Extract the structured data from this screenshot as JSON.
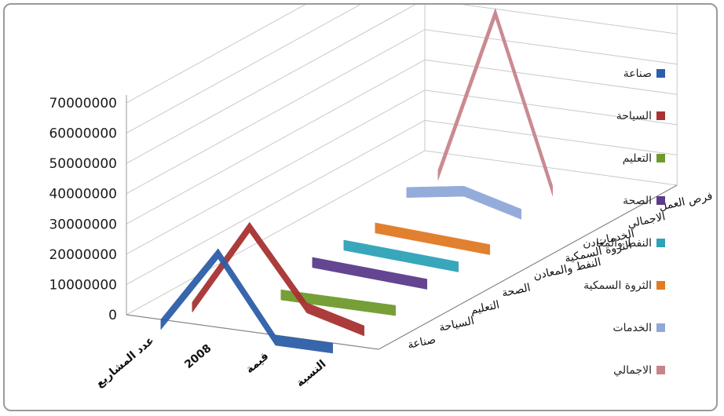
{
  "chart_data": {
    "type": "line",
    "style": "3d",
    "categories": [
      "عدد المشاريع",
      "2008",
      "قيمة",
      "النسبة"
    ],
    "y_ticks": [
      "0",
      "10000000",
      "20000000",
      "30000000",
      "40000000",
      "50000000",
      "60000000",
      "70000000"
    ],
    "ylim": [
      0,
      70000000
    ],
    "legend_position": "right",
    "series": [
      {
        "name": "صناعة",
        "depth_label": "صناعة",
        "color": "#2e5ea8",
        "values": [
          0,
          26000000,
          0,
          0
        ]
      },
      {
        "name": "السياحة",
        "depth_label": "السياحة",
        "color": "#a83232",
        "values": [
          0,
          29000000,
          5000000,
          0
        ]
      },
      {
        "name": "التعليم",
        "depth_label": "التعليم",
        "color": "#6f9a2e",
        "values": [
          null,
          1000000,
          1000000,
          1000000
        ]
      },
      {
        "name": "الصحة",
        "depth_label": "الصحة",
        "color": "#5b3c8c",
        "values": [
          null,
          6000000,
          5000000,
          4000000
        ]
      },
      {
        "name": "النفط والمعادن",
        "depth_label": "النفط والمعادن",
        "color": "#2ea3b8",
        "values": [
          null,
          6000000,
          5000000,
          4000000
        ]
      },
      {
        "name": "الثروة السمكية",
        "depth_label": "الثروة السمكية",
        "color": "#e07a24",
        "values": [
          null,
          6000000,
          5000000,
          4000000
        ]
      },
      {
        "name": "الخدمات",
        "depth_label": "الخدمات",
        "color": "#8fa8d8",
        "values": [
          null,
          12000000,
          15000000,
          10000000
        ]
      },
      {
        "name": "الاجمالي",
        "depth_label": "الاجمالي",
        "color": "#c8848c",
        "values": [
          null,
          12000000,
          68000000,
          12000000
        ]
      }
    ],
    "extra_depth_labels": [
      "فرص العمل"
    ]
  }
}
